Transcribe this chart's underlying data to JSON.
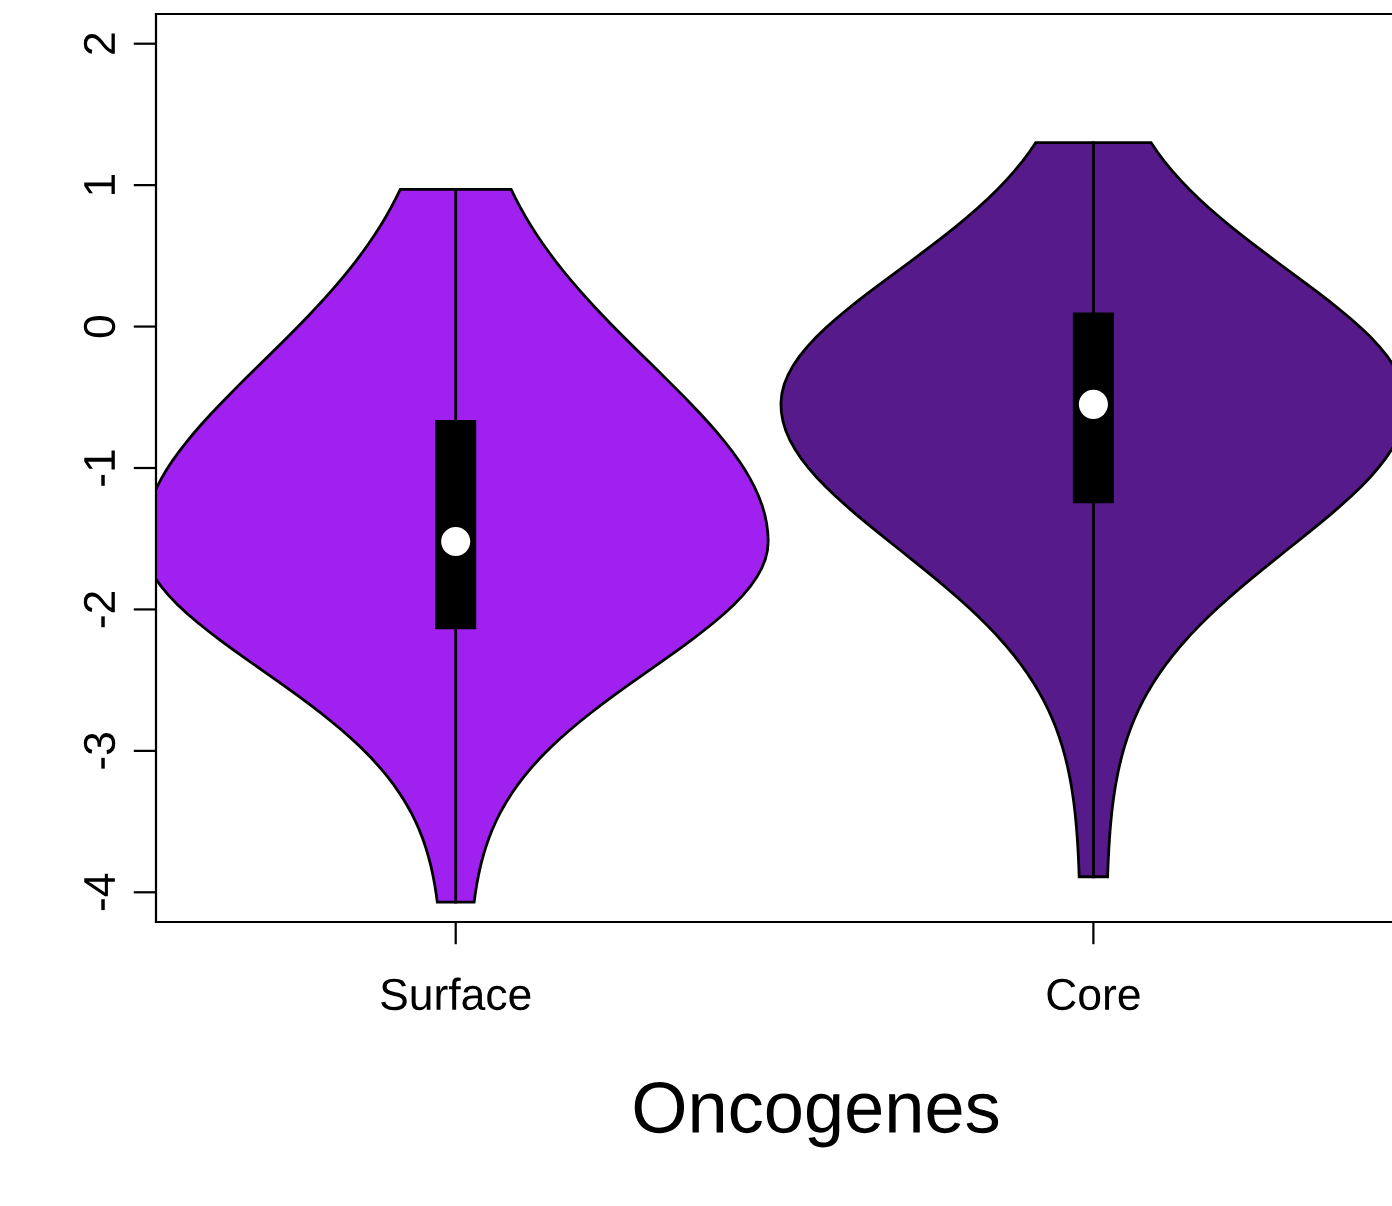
{
  "chart_data": {
    "type": "box",
    "xlabel": "Oncogenes",
    "categories": [
      "Surface",
      "Core"
    ],
    "boxes": [
      {
        "low": -4.07,
        "q1": -2.13,
        "median": -1.52,
        "q3": -0.67,
        "high": 0.97
      },
      {
        "low": -3.89,
        "q1": -1.24,
        "median": -0.55,
        "q3": 0.09,
        "high": 1.3
      }
    ],
    "ylim": [
      -4.21,
      2.21
    ],
    "yticks": [
      -4,
      -3,
      -2,
      -1,
      0,
      1,
      2
    ]
  }
}
